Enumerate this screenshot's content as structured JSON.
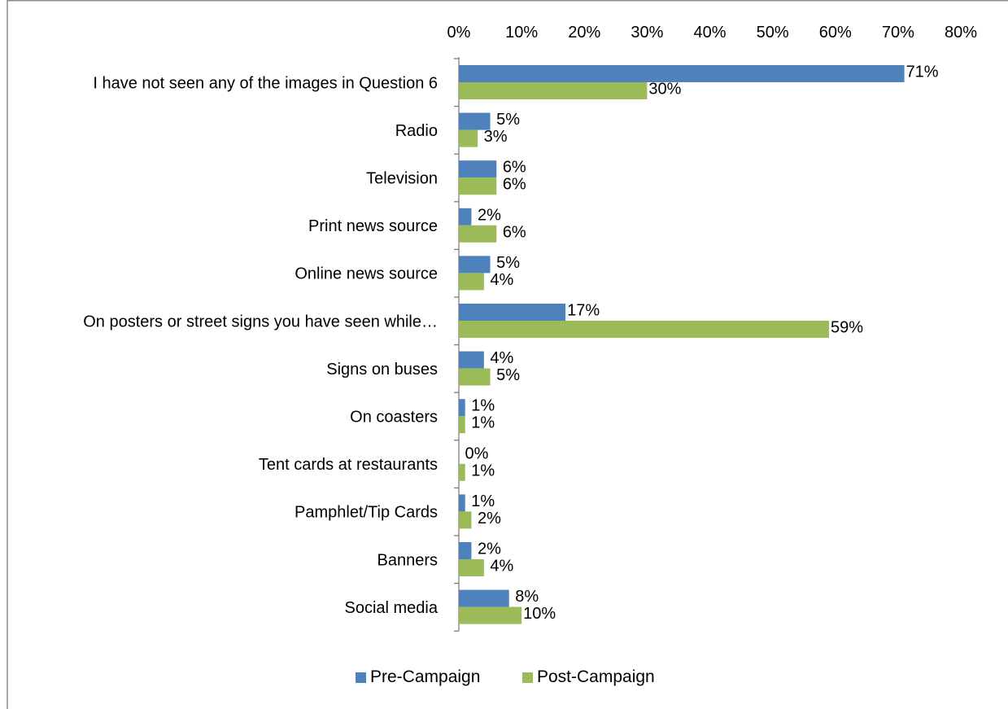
{
  "chart_data": {
    "type": "bar",
    "orientation": "horizontal",
    "categories": [
      "I have not seen any of the images in Question 6",
      "Radio",
      "Television",
      "Print news source",
      "Online news source",
      "On posters or street signs you have seen while…",
      "Signs on buses",
      "On coasters",
      "Tent cards at restaurants",
      "Pamphlet/Tip Cards",
      "Banners",
      "Social media"
    ],
    "series": [
      {
        "name": "Pre-Campaign",
        "color": "#4f81bd",
        "values": [
          71,
          5,
          6,
          2,
          5,
          17,
          4,
          1,
          0,
          1,
          2,
          8
        ],
        "labels": [
          "71%",
          "5%",
          "6%",
          "2%",
          "5%",
          "17%",
          "4%",
          "1%",
          "0%",
          "1%",
          "2%",
          "8%"
        ]
      },
      {
        "name": "Post-Campaign",
        "color": "#9bbb59",
        "values": [
          30,
          3,
          6,
          6,
          4,
          59,
          5,
          1,
          1,
          2,
          4,
          10
        ],
        "labels": [
          "30%",
          "3%",
          "6%",
          "6%",
          "4%",
          "59%",
          "5%",
          "1%",
          "1%",
          "2%",
          "4%",
          "10%"
        ]
      }
    ],
    "xlim": [
      0,
      80
    ],
    "xticks": [
      0,
      10,
      20,
      30,
      40,
      50,
      60,
      70,
      80
    ],
    "xtick_labels": [
      "0%",
      "10%",
      "20%",
      "30%",
      "40%",
      "50%",
      "60%",
      "70%",
      "80%"
    ],
    "x_axis_position": "top",
    "grid": false,
    "legend_position": "bottom",
    "title": "",
    "xlabel": "",
    "ylabel": ""
  }
}
